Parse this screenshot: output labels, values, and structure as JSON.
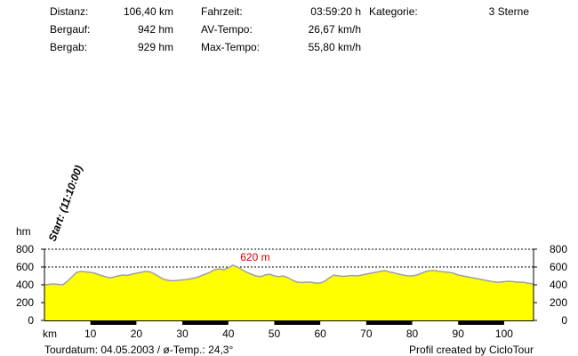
{
  "stats": {
    "distanz_label": "Distanz:",
    "distanz_value": "106,40 km",
    "bergauf_label": "Bergauf:",
    "bergauf_value": "942 hm",
    "bergab_label": "Bergab:",
    "bergab_value": "929 hm",
    "fahrzeit_label": "Fahrzeit:",
    "fahrzeit_value": "03:59:20 h",
    "av_label": "AV-Tempo:",
    "av_value": "26,67 km/h",
    "max_label": "Max-Tempo:",
    "max_value": "55,80 km/h",
    "kategorie_label": "Kategorie:",
    "kategorie_value": "3 Sterne"
  },
  "footer": {
    "tourdatum": "Tourdatum: 04.05.2003  /  ø-Temp.: 24,3°",
    "credit": "Profil created by CicloTour"
  },
  "chart_data": {
    "type": "area",
    "start_annotation": "Start: (11:10:00)",
    "max_annotation": "620 m",
    "ylabel": "hm",
    "xlabel": "km",
    "xlim": [
      0,
      106.4
    ],
    "ylim": [
      0,
      800
    ],
    "y_ticks": [
      0,
      200,
      400,
      600,
      800
    ],
    "x_ticks": [
      10,
      20,
      30,
      40,
      50,
      60,
      70,
      80,
      90,
      100
    ],
    "grid": "dashed-horizontal",
    "fill_color": "#ffff00",
    "line_color": "#a0a0a0",
    "annotation_color": "#cc0000",
    "series": [
      {
        "x": [
          0,
          2,
          4,
          5,
          6,
          7,
          8,
          9,
          10,
          11,
          12,
          13,
          14,
          15,
          16,
          17,
          18,
          19,
          20,
          21,
          22,
          23,
          24,
          25,
          26,
          27,
          28,
          29,
          30,
          31,
          32,
          33,
          34,
          35,
          36,
          37,
          38,
          39,
          40,
          41,
          42,
          43,
          44,
          45,
          46,
          47,
          48,
          49,
          50,
          51,
          52,
          53,
          54,
          55,
          56,
          57,
          58,
          59,
          60,
          61,
          62,
          63,
          64,
          65,
          66,
          67,
          68,
          69,
          70,
          71,
          72,
          73,
          74,
          75,
          76,
          77,
          78,
          79,
          80,
          81,
          82,
          83,
          84,
          85,
          86,
          87,
          88,
          89,
          90,
          91,
          92,
          93,
          94,
          95,
          96,
          97,
          98,
          99,
          100,
          101,
          102,
          103,
          104,
          105,
          106.4
        ],
        "y": [
          400,
          410,
          400,
          440,
          490,
          540,
          550,
          545,
          540,
          530,
          510,
          495,
          480,
          485,
          500,
          510,
          505,
          520,
          530,
          540,
          550,
          545,
          520,
          490,
          460,
          450,
          445,
          450,
          455,
          460,
          470,
          480,
          500,
          520,
          540,
          570,
          580,
          570,
          590,
          620,
          600,
          570,
          540,
          520,
          500,
          490,
          510,
          520,
          500,
          490,
          500,
          480,
          450,
          430,
          425,
          430,
          430,
          420,
          420,
          440,
          480,
          510,
          500,
          495,
          500,
          505,
          500,
          510,
          520,
          530,
          540,
          550,
          560,
          545,
          535,
          520,
          510,
          500,
          500,
          510,
          530,
          550,
          560,
          560,
          550,
          545,
          540,
          530,
          510,
          500,
          490,
          480,
          470,
          460,
          450,
          440,
          430,
          430,
          435,
          440,
          435,
          430,
          430,
          420,
          410
        ]
      }
    ]
  }
}
